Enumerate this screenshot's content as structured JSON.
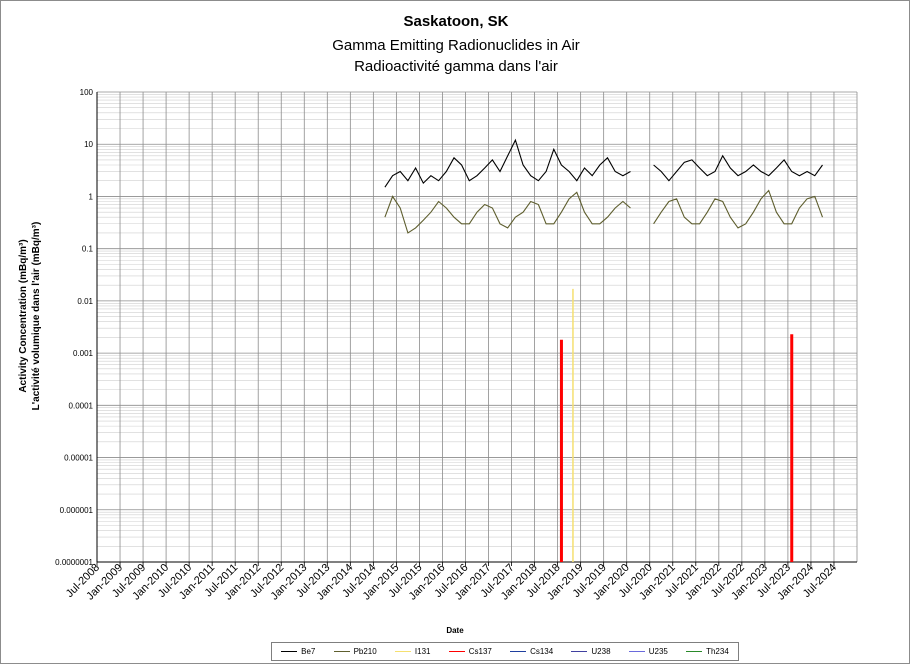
{
  "chart_data": {
    "type": "line",
    "title": "Saskatoon, SK",
    "subtitle_en": "Gamma Emitting Radionuclides in Air",
    "subtitle_fr": "Radioactivité gamma dans l'air",
    "xlabel": "Date",
    "ylabel_en": "Activity Concentration  (mBq/m³)",
    "ylabel_fr": "L'activité volumique dans l'air (mBq/m³)",
    "y_scale": "log",
    "ylim": [
      1e-07,
      100
    ],
    "y_ticks": [
      "100",
      "10",
      "1",
      "0.1",
      "0.01",
      "0.001",
      "0.0001",
      "0.00001",
      "0.000001",
      "0.0000001"
    ],
    "x_ticks": [
      "Jul-2008",
      "Jan-2009",
      "Jul-2009",
      "Jan-2010",
      "Jul-2010",
      "Jan-2011",
      "Jul-2011",
      "Jan-2012",
      "Jul-2012",
      "Jan-2013",
      "Jul-2013",
      "Jan-2014",
      "Jul-2014",
      "Jan-2015",
      "Jul-2015",
      "Jan-2016",
      "Jul-2016",
      "Jan-2017",
      "Jul-2017",
      "Jan-2018",
      "Jul-2018",
      "Jan-2019",
      "Jul-2019",
      "Jan-2020",
      "Jul-2020",
      "Jan-2021",
      "Jul-2021",
      "Jan-2022",
      "Jul-2022",
      "Jan-2023",
      "Jul-2023",
      "Jan-2024",
      "Jul-2024"
    ],
    "grid": true,
    "legend_position": "bottom",
    "series": [
      {
        "name": "Be7",
        "color": "#000000",
        "x": [
          "2014-10",
          "2014-12",
          "2015-02",
          "2015-04",
          "2015-06",
          "2015-08",
          "2015-10",
          "2015-12",
          "2016-02",
          "2016-04",
          "2016-06",
          "2016-08",
          "2016-10",
          "2016-12",
          "2017-02",
          "2017-04",
          "2017-06",
          "2017-08",
          "2017-10",
          "2017-12",
          "2018-02",
          "2018-04",
          "2018-06",
          "2018-08",
          "2018-10",
          "2018-12",
          "2019-02",
          "2019-04",
          "2019-06",
          "2019-08",
          "2019-10",
          "2019-12",
          "2020-02",
          null,
          "2020-08",
          "2020-10",
          "2020-12",
          "2021-02",
          "2021-04",
          "2021-06",
          "2021-08",
          "2021-10",
          "2021-12",
          "2022-02",
          "2022-04",
          "2022-06",
          "2022-08",
          "2022-10",
          "2022-12",
          "2023-02",
          "2023-04",
          "2023-06",
          "2023-08",
          "2023-10",
          "2023-12",
          "2024-02",
          "2024-04"
        ],
        "values": [
          1.5,
          2.5,
          3.0,
          2.0,
          3.5,
          1.8,
          2.5,
          2.0,
          3.0,
          5.5,
          4.0,
          2.0,
          2.5,
          3.5,
          5.0,
          3.0,
          6.0,
          12.0,
          4.0,
          2.5,
          2.0,
          3.0,
          8.0,
          4.0,
          3.0,
          2.0,
          3.5,
          2.5,
          4.0,
          5.5,
          3.0,
          2.5,
          3.0,
          null,
          4.0,
          3.0,
          2.0,
          3.0,
          4.5,
          5.0,
          3.5,
          2.5,
          3.0,
          6.0,
          3.5,
          2.5,
          3.0,
          4.0,
          3.0,
          2.5,
          3.5,
          5.0,
          3.0,
          2.5,
          3.0,
          2.5,
          4.0
        ]
      },
      {
        "name": "Pb210",
        "color": "#5e5e2e",
        "x": [
          "2014-10",
          "2014-12",
          "2015-02",
          "2015-04",
          "2015-06",
          "2015-08",
          "2015-10",
          "2015-12",
          "2016-02",
          "2016-04",
          "2016-06",
          "2016-08",
          "2016-10",
          "2016-12",
          "2017-02",
          "2017-04",
          "2017-06",
          "2017-08",
          "2017-10",
          "2017-12",
          "2018-02",
          "2018-04",
          "2018-06",
          "2018-08",
          "2018-10",
          "2018-12",
          "2019-02",
          "2019-04",
          "2019-06",
          "2019-08",
          "2019-10",
          "2019-12",
          "2020-02",
          null,
          "2020-08",
          "2020-10",
          "2020-12",
          "2021-02",
          "2021-04",
          "2021-06",
          "2021-08",
          "2021-10",
          "2021-12",
          "2022-02",
          "2022-04",
          "2022-06",
          "2022-08",
          "2022-10",
          "2022-12",
          "2023-02",
          "2023-04",
          "2023-06",
          "2023-08",
          "2023-10",
          "2023-12",
          "2024-02",
          "2024-04"
        ],
        "values": [
          0.4,
          1.0,
          0.6,
          0.2,
          0.25,
          0.35,
          0.5,
          0.8,
          0.6,
          0.4,
          0.3,
          0.3,
          0.5,
          0.7,
          0.6,
          0.3,
          0.25,
          0.4,
          0.5,
          0.8,
          0.7,
          0.3,
          0.3,
          0.5,
          0.9,
          1.2,
          0.5,
          0.3,
          0.3,
          0.4,
          0.6,
          0.8,
          0.6,
          null,
          0.3,
          0.5,
          0.8,
          0.9,
          0.4,
          0.3,
          0.3,
          0.5,
          0.9,
          0.8,
          0.4,
          0.25,
          0.3,
          0.5,
          0.9,
          1.3,
          0.5,
          0.3,
          0.3,
          0.6,
          0.9,
          1.0,
          0.4
        ]
      },
      {
        "name": "I131",
        "color": "#f5e070",
        "bars": [
          {
            "x": "2018-11",
            "value": 0.017
          }
        ]
      },
      {
        "name": "Cs137",
        "color": "#ff0000",
        "bars": [
          {
            "x": "2018-08",
            "value": 0.0018
          },
          {
            "x": "2023-08",
            "value": 0.0023
          }
        ]
      },
      {
        "name": "Cs134",
        "color": "#1f3f9f",
        "values": []
      },
      {
        "name": "U238",
        "color": "#4040a0",
        "values": []
      },
      {
        "name": "U235",
        "color": "#6a6adc",
        "values": []
      },
      {
        "name": "Th234",
        "color": "#2a8a2a",
        "values": []
      }
    ]
  }
}
